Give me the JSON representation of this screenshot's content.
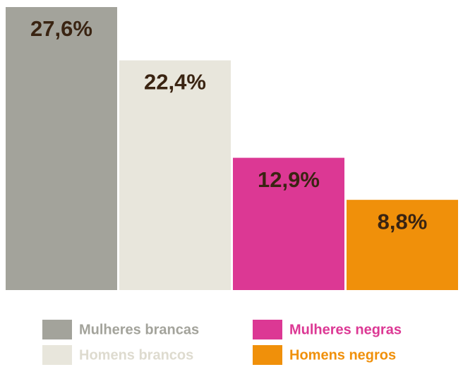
{
  "chart_data": {
    "type": "bar",
    "categories": [
      "Mulheres brancas",
      "Homens brancos",
      "Mulheres negras",
      "Homens negros"
    ],
    "values": [
      27.6,
      22.4,
      12.9,
      8.8
    ],
    "value_labels": [
      "27,6%",
      "22,4%",
      "12,9%",
      "8,8%"
    ],
    "colors": [
      "#a3a39b",
      "#e8e6dc",
      "#dc3894",
      "#f0900a"
    ]
  }
}
